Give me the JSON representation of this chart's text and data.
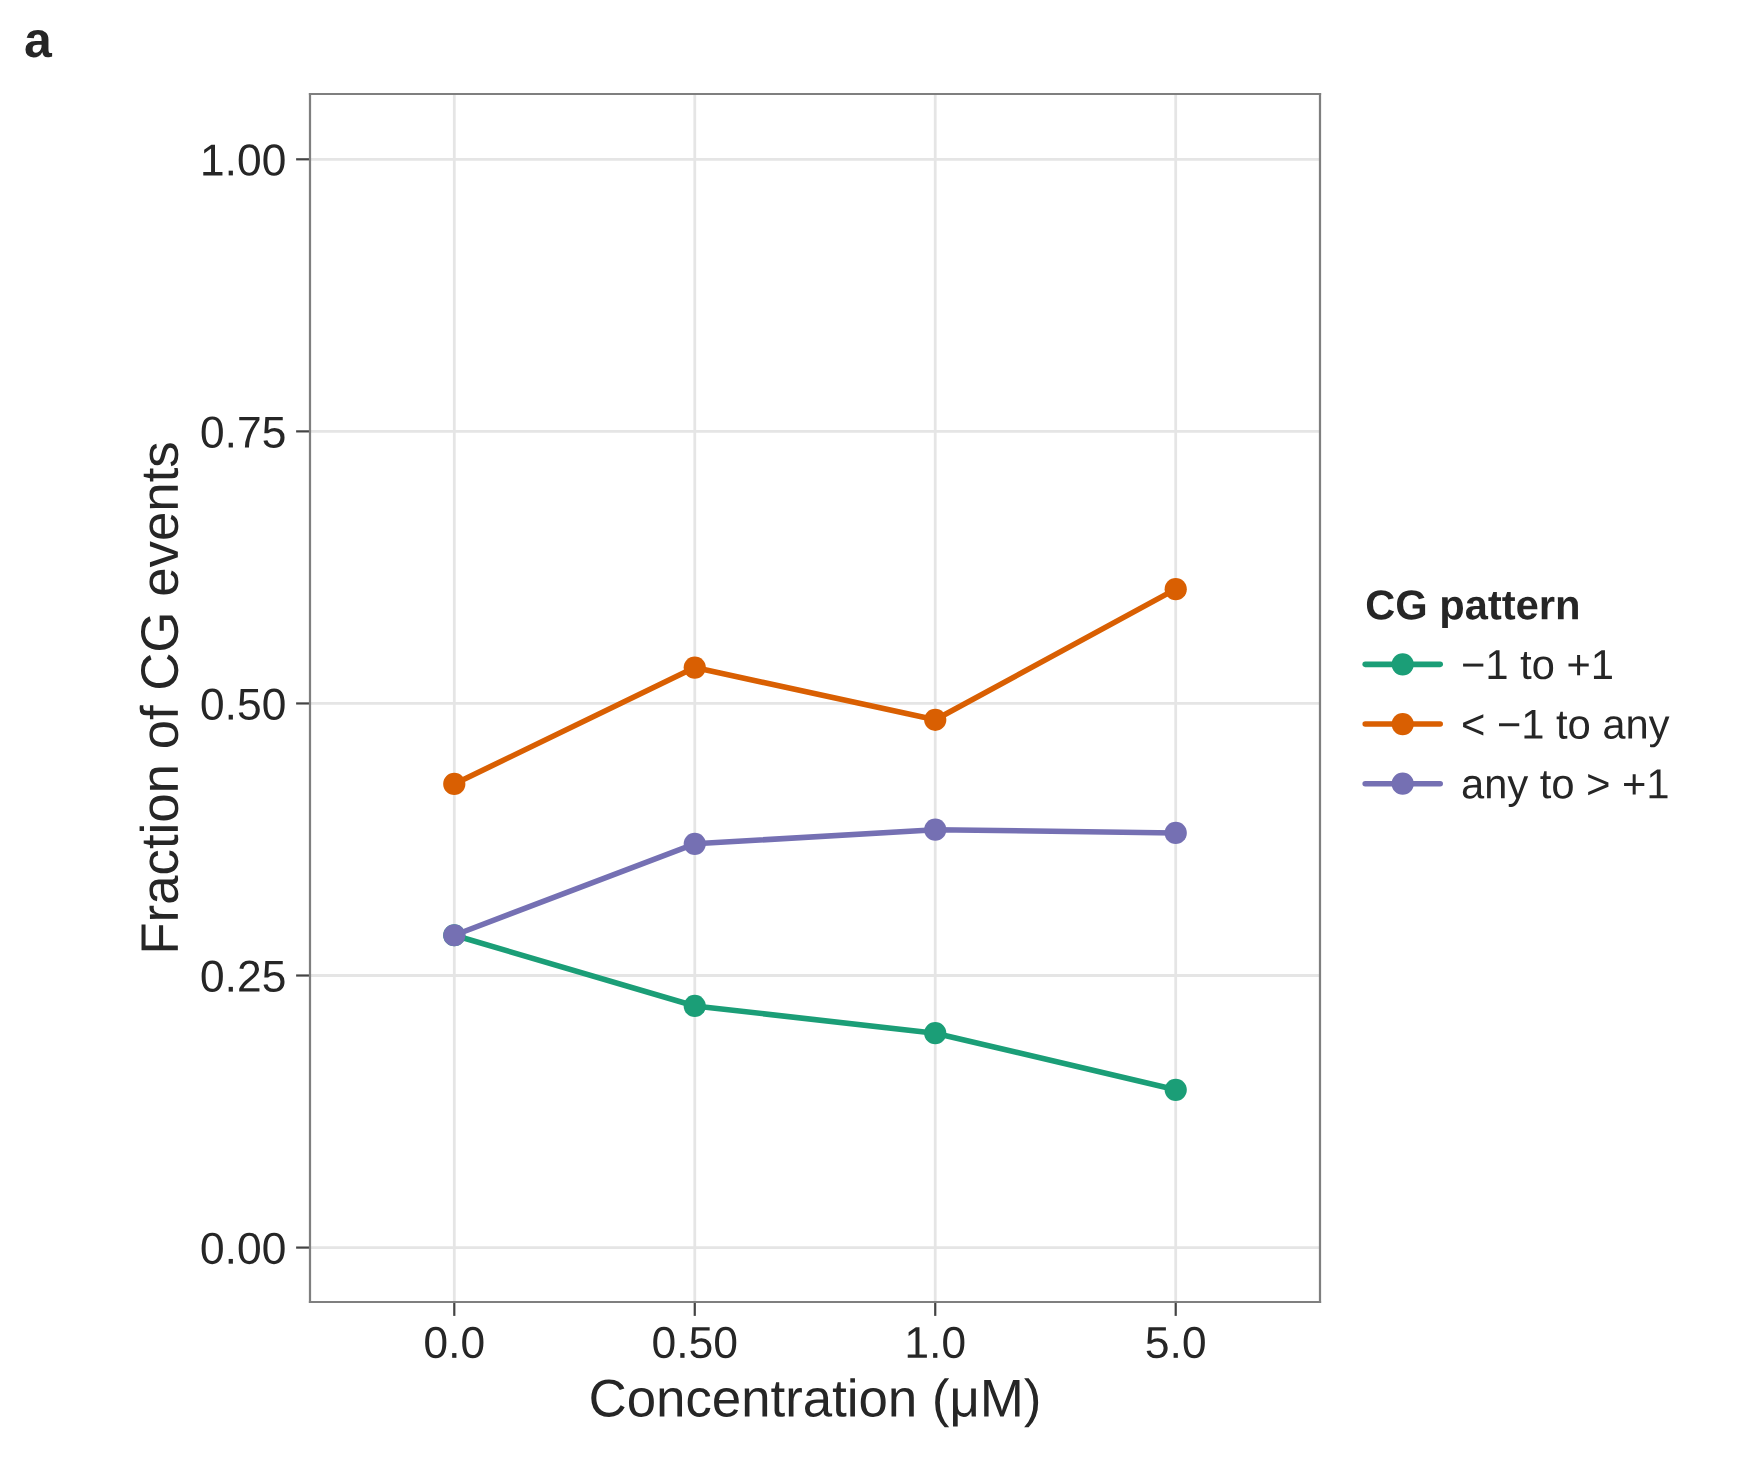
{
  "chart_data": {
    "type": "line",
    "title": "a",
    "xlabel": "Concentration (μM)",
    "ylabel": "Fraction of CG events",
    "legend_title": "CG pattern",
    "categories": [
      "0.0",
      "0.50",
      "1.0",
      "5.0"
    ],
    "series": [
      {
        "name": "−1 to +1",
        "color": "#1b9e77",
        "values": [
          0.287,
          0.222,
          0.197,
          0.145
        ]
      },
      {
        "name": "< −1 to any",
        "color": "#d95f02",
        "values": [
          0.426,
          0.533,
          0.485,
          0.605
        ]
      },
      {
        "name": "any to > +1",
        "color": "#7570b3",
        "values": [
          0.287,
          0.371,
          0.384,
          0.381
        ]
      }
    ],
    "ylim": [
      -0.05,
      1.06
    ],
    "yticks": [
      {
        "value": 0,
        "label": "0.00"
      },
      {
        "value": 0.25,
        "label": "0.25"
      },
      {
        "value": 0.5,
        "label": "0.50"
      },
      {
        "value": 0.75,
        "label": "0.75"
      },
      {
        "value": 1,
        "label": "1.00"
      }
    ],
    "grid": true,
    "legend": "right",
    "marker": "circle",
    "line_style": "solid"
  }
}
